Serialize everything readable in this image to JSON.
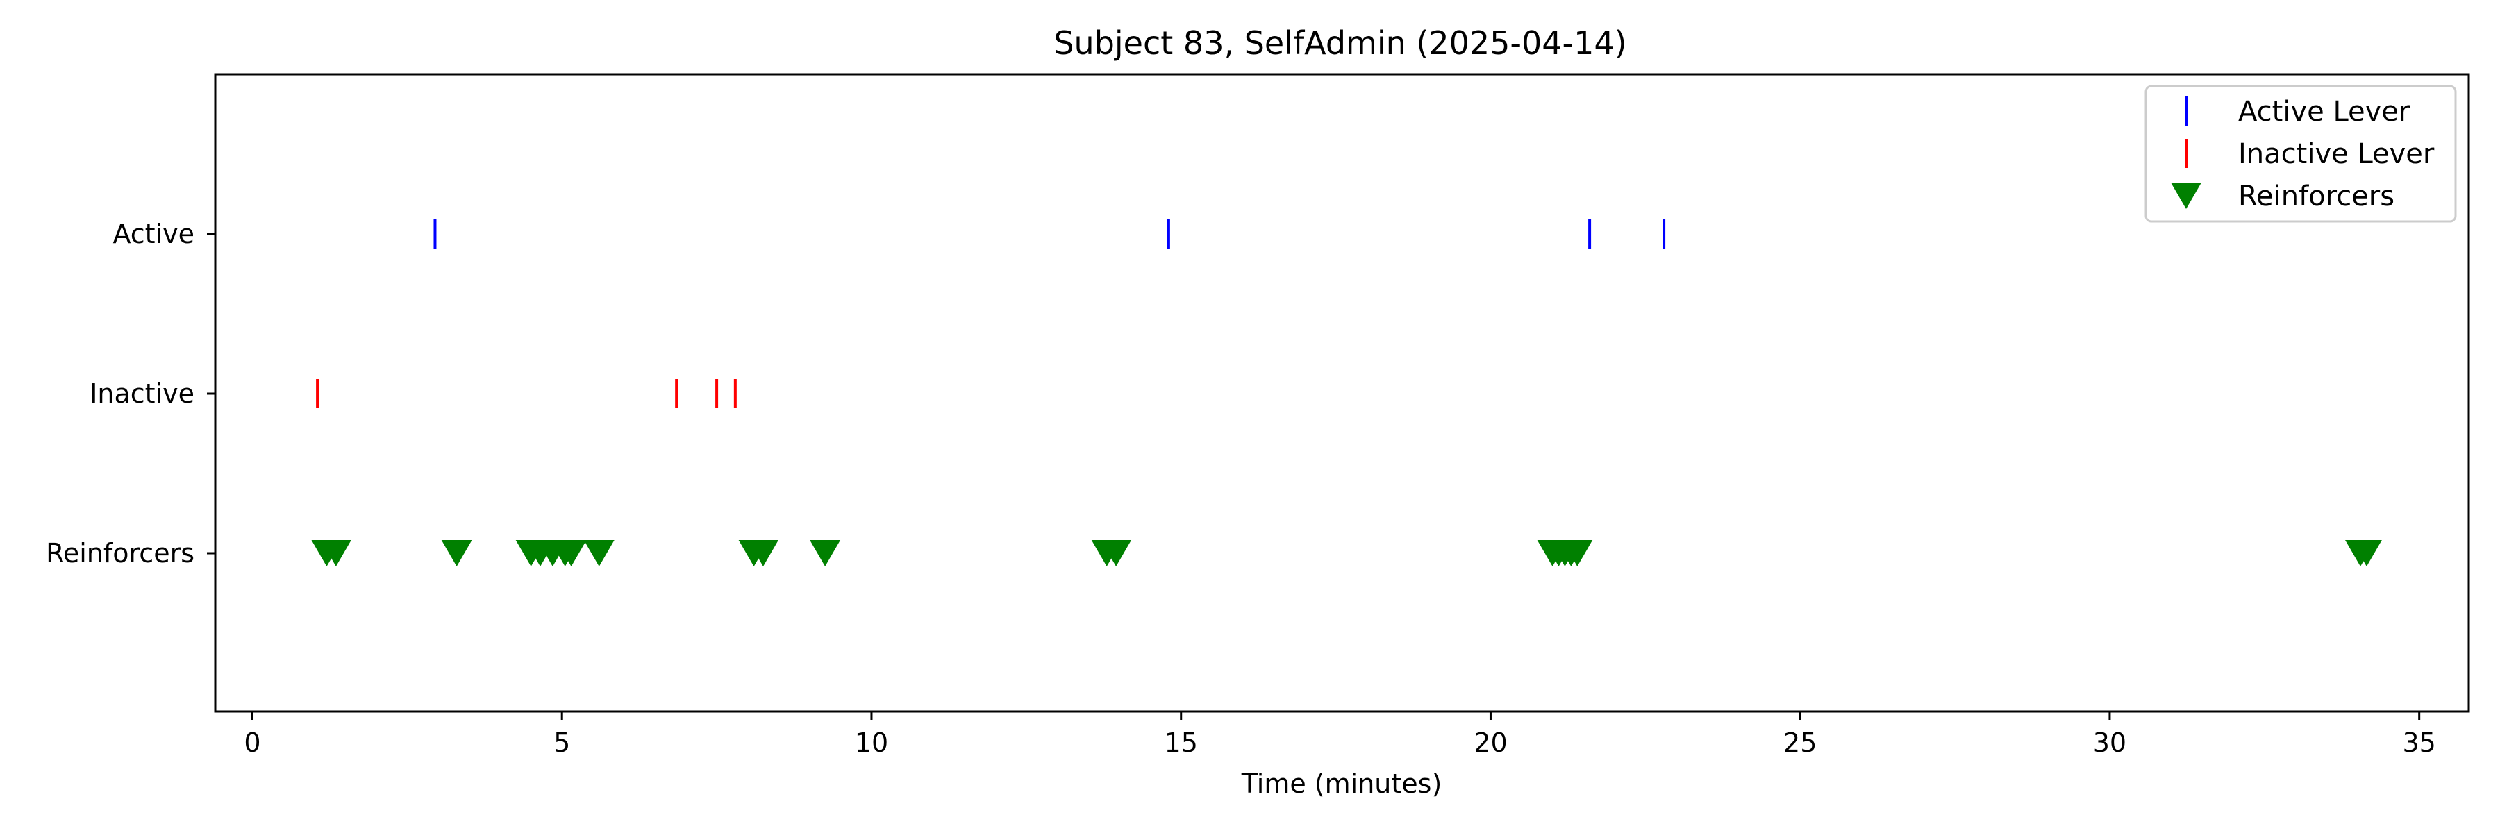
{
  "chart_data": {
    "type": "scatter",
    "title": "Subject 83, SelfAdmin (2025-04-14)",
    "xlabel": "Time (minutes)",
    "ylabel": "",
    "xlim": [
      -0.6,
      35.8
    ],
    "xticks": [
      0,
      5,
      10,
      15,
      20,
      25,
      30,
      35
    ],
    "categories": [
      "Active",
      "Inactive",
      "Reinforcers"
    ],
    "grid": false,
    "legend_position": "top-right",
    "series": [
      {
        "name": "Active Lever",
        "row": "Active",
        "marker": "vline",
        "color": "#0000ff",
        "x": [
          2.95,
          14.8,
          21.6,
          22.8
        ]
      },
      {
        "name": "Inactive Lever",
        "row": "Inactive",
        "marker": "vline",
        "color": "#ff0000",
        "x": [
          1.05,
          6.85,
          7.5,
          7.8
        ]
      },
      {
        "name": "Reinforcers",
        "row": "Reinforcers",
        "marker": "triangle-down",
        "color": "#008000",
        "x": [
          1.2,
          1.35,
          3.3,
          4.5,
          4.65,
          4.85,
          5.05,
          5.15,
          5.6,
          8.1,
          8.25,
          9.25,
          13.8,
          13.95,
          21.0,
          21.1,
          21.2,
          21.3,
          21.4,
          34.05,
          34.15
        ]
      }
    ]
  }
}
